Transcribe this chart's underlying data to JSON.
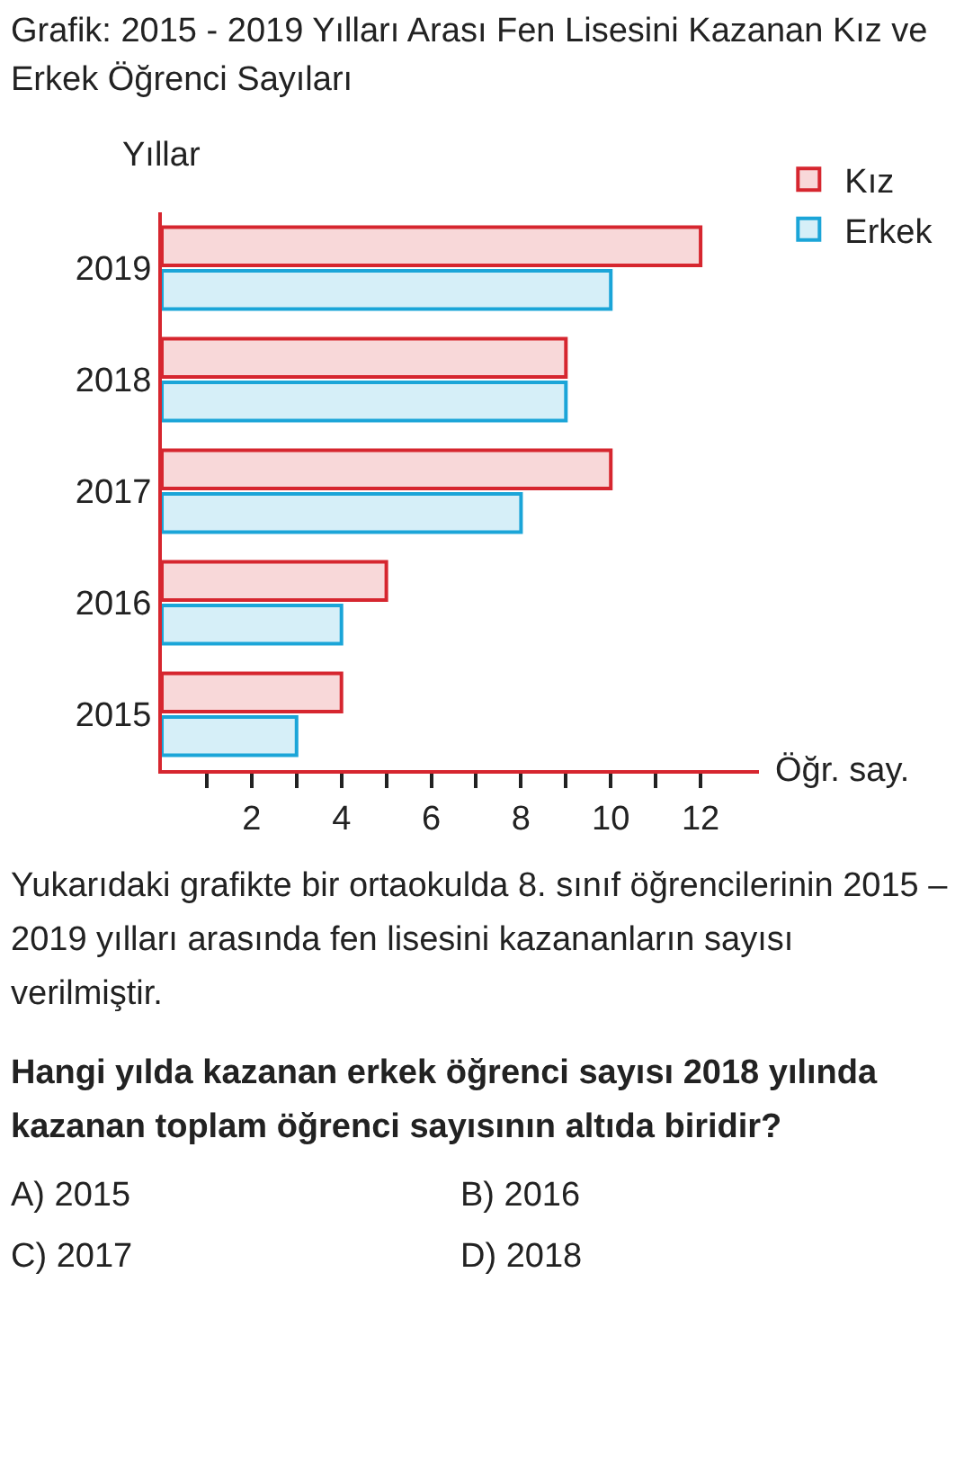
{
  "chart_data": {
    "type": "bar",
    "orientation": "horizontal",
    "title": "Grafik: 2015 - 2019 Yılları Arası Fen Lisesini Kazanan Kız ve Erkek Öğrenci Sayıları",
    "ylabel": "Yıllar",
    "xlabel": "Öğr. say.",
    "categories": [
      "2019",
      "2018",
      "2017",
      "2016",
      "2015"
    ],
    "series": [
      {
        "name": "Kız",
        "color": "#d6262f",
        "values": [
          12,
          9,
          10,
          5,
          4
        ]
      },
      {
        "name": "Erkek",
        "color": "#1ba5d8",
        "values": [
          10,
          9,
          8,
          4,
          3
        ]
      }
    ],
    "xlim": [
      0,
      13.3
    ],
    "xticks": [
      {
        "value": 1,
        "label": null
      },
      2,
      {
        "value": 3,
        "label": null
      },
      4,
      {
        "value": 5,
        "label": null
      },
      6,
      {
        "value": 7,
        "label": null
      },
      8,
      {
        "value": 9,
        "label": null
      },
      10,
      {
        "value": 11,
        "label": null
      },
      12
    ],
    "legend": "top right",
    "grid": false,
    "annotations": [
      "Yukarıdaki grafikte bir ortaokulda 8. sınıf öğrencilerinin 2015 – 2019 yılları arasında fen lisesini kazananların sayısı verilmiştir.",
      "Hangi yılda kazanan erkek öğrenci sayısı 2018 yılında kazanan toplam öğrenci sayısının altıda biridir?",
      "A) 2015",
      "B) 2016",
      "C) 2017",
      "D) 2018"
    ]
  }
}
